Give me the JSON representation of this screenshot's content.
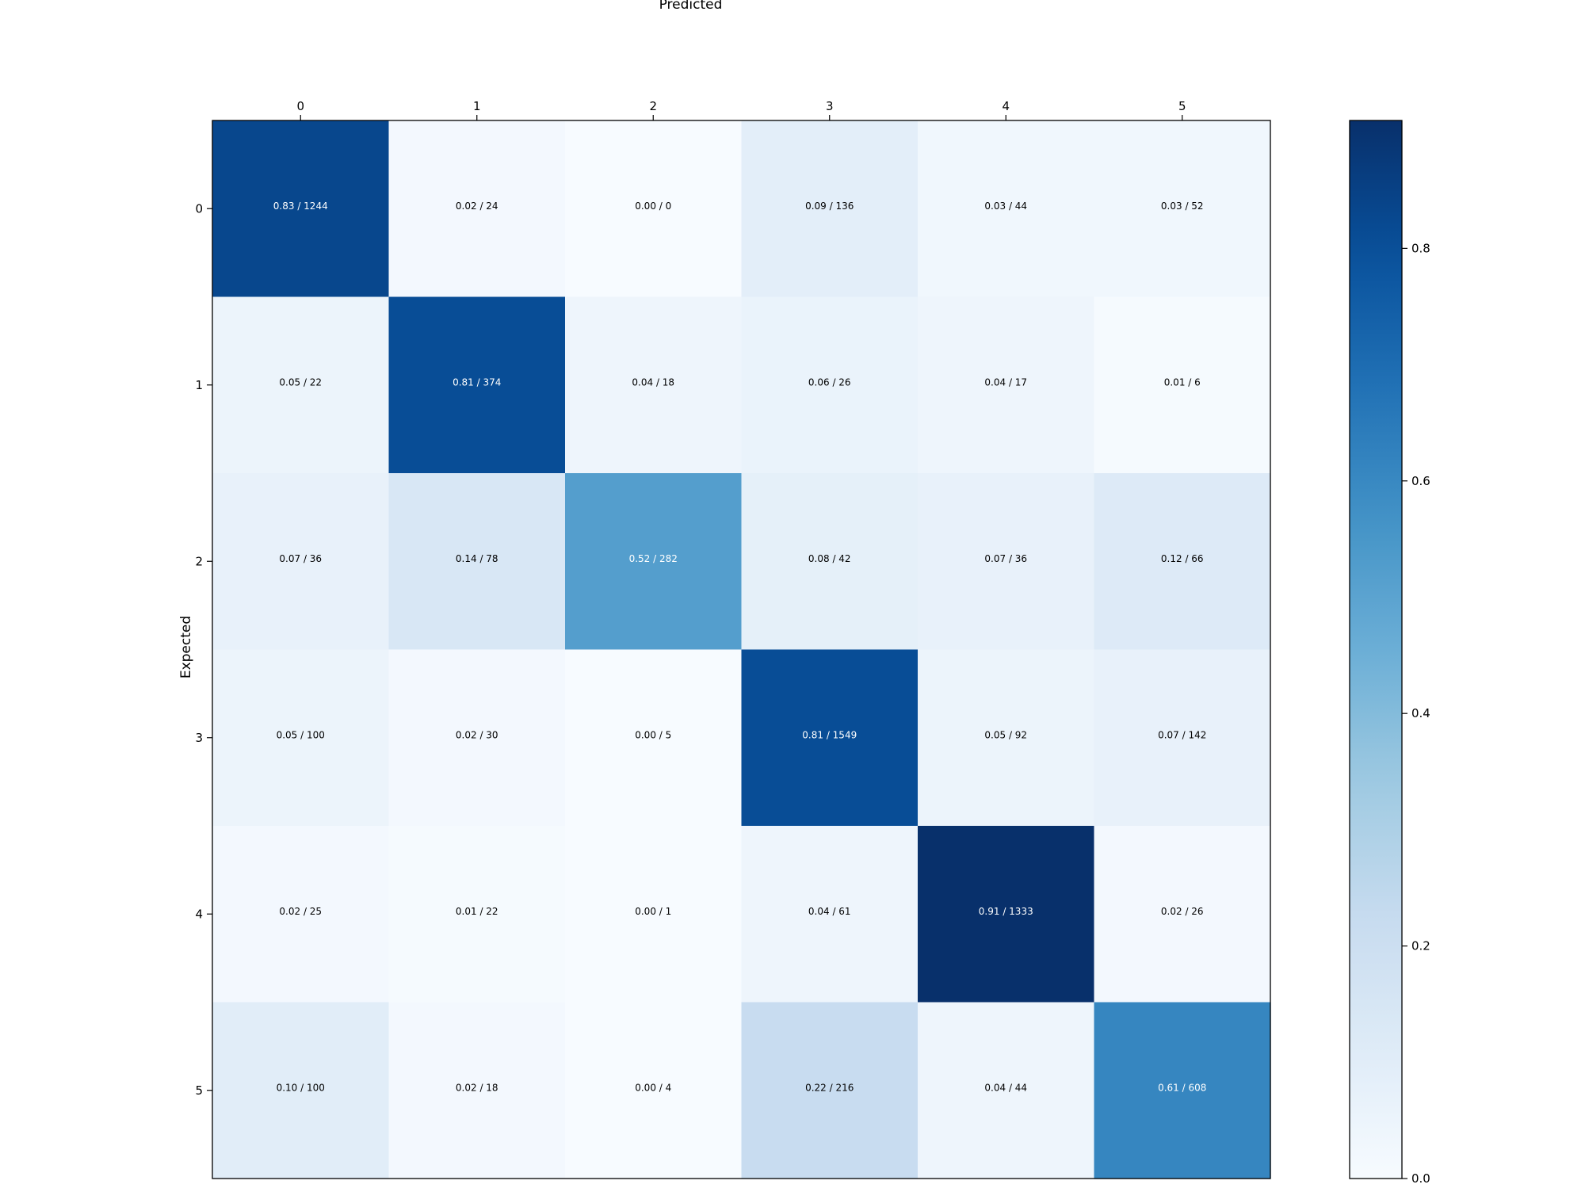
{
  "chart_data": {
    "type": "heatmap",
    "title": "",
    "xlabel": "Predicted",
    "ylabel": "Expected",
    "x_categories": [
      "0",
      "1",
      "2",
      "3",
      "4",
      "5"
    ],
    "y_categories": [
      "0",
      "1",
      "2",
      "3",
      "4",
      "5"
    ],
    "x_tick_position": "top",
    "values": [
      [
        0.83,
        0.02,
        0.0,
        0.09,
        0.03,
        0.03
      ],
      [
        0.05,
        0.81,
        0.04,
        0.06,
        0.04,
        0.01
      ],
      [
        0.07,
        0.14,
        0.52,
        0.08,
        0.07,
        0.12
      ],
      [
        0.05,
        0.02,
        0.0,
        0.81,
        0.05,
        0.07
      ],
      [
        0.02,
        0.01,
        0.0,
        0.04,
        0.91,
        0.02
      ],
      [
        0.1,
        0.02,
        0.0,
        0.22,
        0.04,
        0.61
      ]
    ],
    "counts": [
      [
        1244,
        24,
        0,
        136,
        44,
        52
      ],
      [
        22,
        374,
        18,
        26,
        17,
        6
      ],
      [
        36,
        78,
        282,
        42,
        36,
        66
      ],
      [
        100,
        30,
        5,
        1549,
        92,
        142
      ],
      [
        25,
        22,
        1,
        61,
        1333,
        26
      ],
      [
        100,
        18,
        4,
        216,
        44,
        608
      ]
    ],
    "cell_labels": [
      [
        "0.83 / 1244",
        "0.02 / 24",
        "0.00 / 0",
        "0.09 / 136",
        "0.03 / 44",
        "0.03 / 52"
      ],
      [
        "0.05 / 22",
        "0.81 / 374",
        "0.04 / 18",
        "0.06 / 26",
        "0.04 / 17",
        "0.01 / 6"
      ],
      [
        "0.07 / 36",
        "0.14 / 78",
        "0.52 / 282",
        "0.08 / 42",
        "0.07 / 36",
        "0.12 / 66"
      ],
      [
        "0.05 / 100",
        "0.02 / 30",
        "0.00 / 5",
        "0.81 / 1549",
        "0.05 / 92",
        "0.07 / 142"
      ],
      [
        "0.02 / 25",
        "0.01 / 22",
        "0.00 / 1",
        "0.04 / 61",
        "0.91 / 1333",
        "0.02 / 26"
      ],
      [
        "0.10 / 100",
        "0.02 / 18",
        "0.00 / 4",
        "0.22 / 216",
        "0.04 / 44",
        "0.61 / 608"
      ]
    ],
    "colormap": "Blues",
    "colorbar": {
      "range": [
        0.0,
        0.91
      ],
      "ticks": [
        0.0,
        0.2,
        0.4,
        0.6,
        0.8
      ],
      "tick_labels": [
        "0.0",
        "0.2",
        "0.4",
        "0.6",
        "0.8"
      ],
      "placement": "right"
    },
    "grid": false
  }
}
